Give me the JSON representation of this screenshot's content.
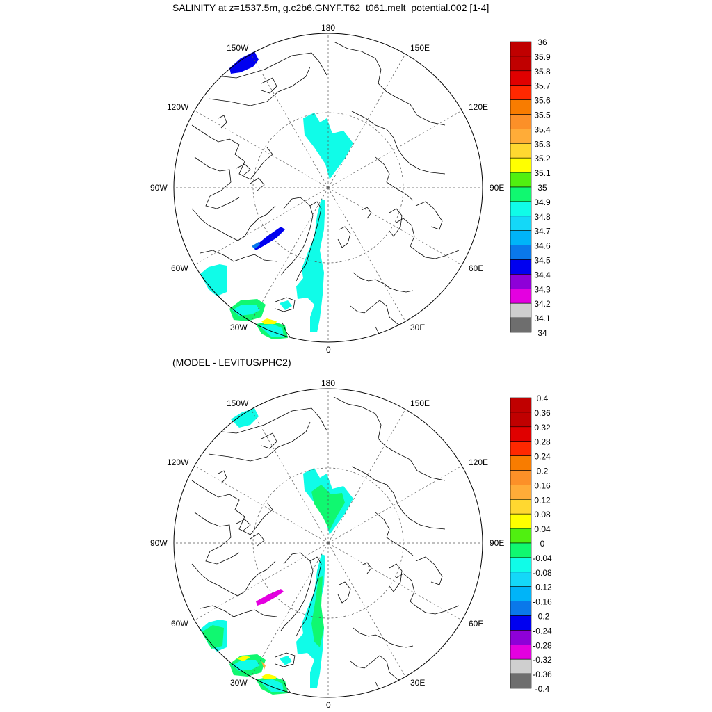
{
  "colors": {
    "palette": [
      "#6e6e6e",
      "#cfcfcf",
      "#e400e0",
      "#8e00d8",
      "#0000f0",
      "#0a78ea",
      "#00b4f8",
      "#14d8f8",
      "#10fce8",
      "#10f870",
      "#50f010",
      "#ffff00",
      "#ffd830",
      "#ffac38",
      "#fc9028",
      "#f87c00",
      "#ff2800",
      "#e00000",
      "#c00000"
    ],
    "coast": "#000000",
    "grid": "#555555"
  },
  "panels": [
    {
      "title": "SALINITY at z=1537.5m, g.c2b6.GNYF.T62_t061.melt_potential.002 [1-4]",
      "map_labels": {
        "top": "180",
        "bottom": "0",
        "left": "90W",
        "right": "90E",
        "ul1": "150W",
        "ur1": "150E",
        "ul2": "120W",
        "ur2": "120E",
        "ll1": "60W",
        "lr1": "60E",
        "ll2": "30W",
        "lr2": "30E"
      },
      "colorbar_labels": [
        "36",
        "35.9",
        "35.8",
        "35.7",
        "35.6",
        "35.5",
        "35.4",
        "35.3",
        "35.2",
        "35.1",
        "35",
        "34.9",
        "34.8",
        "34.7",
        "34.6",
        "34.5",
        "34.4",
        "34.3",
        "34.2",
        "34.1",
        "34"
      ]
    },
    {
      "title": "(MODEL - LEVITUS/PHC2)",
      "map_labels": {
        "top": "180",
        "bottom": "0",
        "left": "90W",
        "right": "90E",
        "ul1": "150W",
        "ur1": "150E",
        "ul2": "120W",
        "ur2": "120E",
        "ll1": "60W",
        "lr1": "60E",
        "ll2": "30W",
        "lr2": "30E"
      },
      "colorbar_labels": [
        "0.4",
        "0.36",
        "0.32",
        "0.28",
        "0.24",
        "0.2",
        "0.16",
        "0.12",
        "0.08",
        "0.04",
        "0",
        "-0.04",
        "-0.08",
        "-0.12",
        "-0.16",
        "-0.2",
        "-0.24",
        "-0.28",
        "-0.32",
        "-0.36",
        "-0.4"
      ]
    }
  ]
}
